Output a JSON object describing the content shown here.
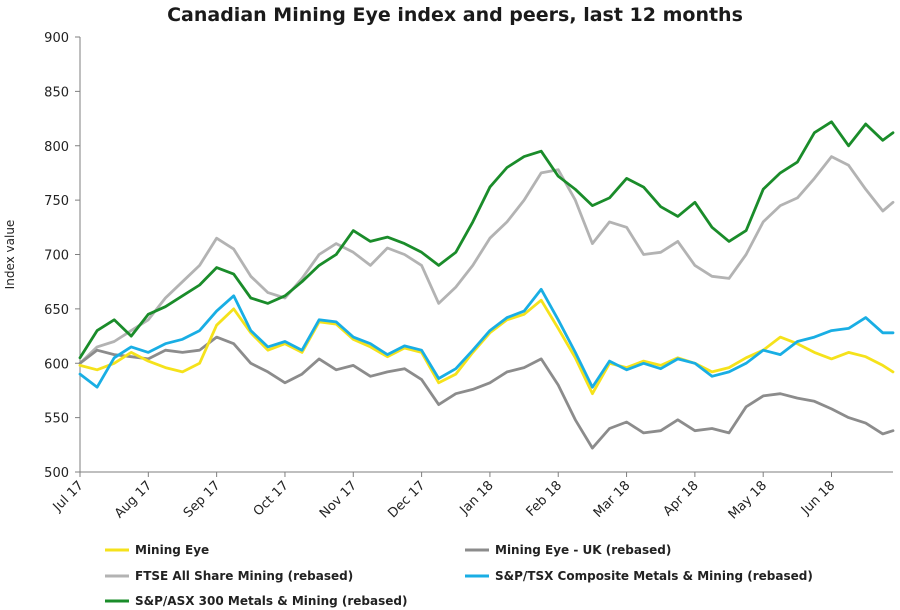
{
  "chart_data": {
    "type": "line",
    "title": "Canadian Mining Eye index and peers, last 12 months",
    "ylabel": "Index value",
    "xlabel": "",
    "ylim": [
      500,
      900
    ],
    "yticks": [
      500,
      550,
      600,
      650,
      700,
      750,
      800,
      850,
      900
    ],
    "x_tick_labels": [
      "Jul 17",
      "Aug 17",
      "Sep 17",
      "Oct 17",
      "Nov 17",
      "Dec 17",
      "Jan 18",
      "Feb 18",
      "Mar 18",
      "Apr 18",
      "May 18",
      "Jun 18"
    ],
    "grid": false,
    "legend_position": "bottom",
    "series": [
      {
        "name": "Mining Eye",
        "color": "#f5e21b",
        "x": [
          0,
          0.25,
          0.5,
          0.75,
          1,
          1.25,
          1.5,
          1.75,
          2,
          2.25,
          2.5,
          2.75,
          3,
          3.25,
          3.5,
          3.75,
          4,
          4.25,
          4.5,
          4.75,
          5,
          5.25,
          5.5,
          5.75,
          6,
          6.25,
          6.5,
          6.75,
          7,
          7.25,
          7.5,
          7.75,
          8,
          8.25,
          8.5,
          8.75,
          9,
          9.25,
          9.5,
          9.75,
          10,
          10.25,
          10.5,
          10.75,
          11,
          11.25,
          11.5,
          11.75,
          11.9
        ],
        "values": [
          598,
          594,
          600,
          610,
          602,
          596,
          592,
          600,
          635,
          650,
          628,
          612,
          618,
          610,
          638,
          636,
          622,
          615,
          606,
          614,
          610,
          582,
          590,
          610,
          628,
          640,
          645,
          658,
          632,
          605,
          572,
          600,
          596,
          602,
          598,
          605,
          600,
          592,
          596,
          605,
          612,
          624,
          618,
          610,
          604,
          610,
          606,
          598,
          592
        ]
      },
      {
        "name": "Mining Eye - UK (rebased)",
        "color": "#8c8c8c",
        "x": [
          0,
          0.25,
          0.5,
          0.75,
          1,
          1.25,
          1.5,
          1.75,
          2,
          2.25,
          2.5,
          2.75,
          3,
          3.25,
          3.5,
          3.75,
          4,
          4.25,
          4.5,
          4.75,
          5,
          5.25,
          5.5,
          5.75,
          6,
          6.25,
          6.5,
          6.75,
          7,
          7.25,
          7.5,
          7.75,
          8,
          8.25,
          8.5,
          8.75,
          9,
          9.25,
          9.5,
          9.75,
          10,
          10.25,
          10.5,
          10.75,
          11,
          11.25,
          11.5,
          11.75,
          11.9
        ],
        "values": [
          600,
          612,
          608,
          606,
          604,
          612,
          610,
          612,
          624,
          618,
          600,
          592,
          582,
          590,
          604,
          594,
          598,
          588,
          592,
          595,
          585,
          562,
          572,
          576,
          582,
          592,
          596,
          604,
          580,
          548,
          522,
          540,
          546,
          536,
          538,
          548,
          538,
          540,
          536,
          560,
          570,
          572,
          568,
          565,
          558,
          550,
          545,
          535,
          538
        ]
      },
      {
        "name": "FTSE All Share Mining (rebased)",
        "color": "#b3b3b3",
        "x": [
          0,
          0.25,
          0.5,
          0.75,
          1,
          1.25,
          1.5,
          1.75,
          2,
          2.25,
          2.5,
          2.75,
          3,
          3.25,
          3.5,
          3.75,
          4,
          4.25,
          4.5,
          4.75,
          5,
          5.25,
          5.5,
          5.75,
          6,
          6.25,
          6.5,
          6.75,
          7,
          7.25,
          7.5,
          7.75,
          8,
          8.25,
          8.5,
          8.75,
          9,
          9.25,
          9.5,
          9.75,
          10,
          10.25,
          10.5,
          10.75,
          11,
          11.25,
          11.5,
          11.75,
          11.9
        ],
        "values": [
          600,
          615,
          620,
          630,
          640,
          660,
          675,
          690,
          715,
          705,
          680,
          665,
          660,
          678,
          700,
          710,
          702,
          690,
          706,
          700,
          690,
          655,
          670,
          690,
          715,
          730,
          750,
          775,
          778,
          750,
          710,
          730,
          725,
          700,
          702,
          712,
          690,
          680,
          678,
          700,
          730,
          745,
          752,
          770,
          790,
          782,
          760,
          740,
          748
        ]
      },
      {
        "name": "S&P/TSX Composite Metals & Mining (rebased)",
        "color": "#19aee4",
        "x": [
          0,
          0.25,
          0.5,
          0.75,
          1,
          1.25,
          1.5,
          1.75,
          2,
          2.25,
          2.5,
          2.75,
          3,
          3.25,
          3.5,
          3.75,
          4,
          4.25,
          4.5,
          4.75,
          5,
          5.25,
          5.5,
          5.75,
          6,
          6.25,
          6.5,
          6.75,
          7,
          7.25,
          7.5,
          7.75,
          8,
          8.25,
          8.5,
          8.75,
          9,
          9.25,
          9.5,
          9.75,
          10,
          10.25,
          10.5,
          10.75,
          11,
          11.25,
          11.5,
          11.75,
          11.9
        ],
        "values": [
          590,
          578,
          605,
          615,
          610,
          618,
          622,
          630,
          648,
          662,
          630,
          615,
          620,
          612,
          640,
          638,
          624,
          618,
          608,
          616,
          612,
          586,
          595,
          612,
          630,
          642,
          648,
          668,
          640,
          610,
          578,
          602,
          594,
          600,
          595,
          604,
          600,
          588,
          592,
          600,
          612,
          608,
          620,
          624,
          630,
          632,
          642,
          628,
          628
        ]
      },
      {
        "name": "S&P/ASX 300 Metals & Mining (rebased)",
        "color": "#1a8c2a",
        "x": [
          0,
          0.25,
          0.5,
          0.75,
          1,
          1.25,
          1.5,
          1.75,
          2,
          2.25,
          2.5,
          2.75,
          3,
          3.25,
          3.5,
          3.75,
          4,
          4.25,
          4.5,
          4.75,
          5,
          5.25,
          5.5,
          5.75,
          6,
          6.25,
          6.5,
          6.75,
          7,
          7.25,
          7.5,
          7.75,
          8,
          8.25,
          8.5,
          8.75,
          9,
          9.25,
          9.5,
          9.75,
          10,
          10.25,
          10.5,
          10.75,
          11,
          11.25,
          11.5,
          11.75,
          11.9
        ],
        "values": [
          605,
          630,
          640,
          625,
          645,
          652,
          662,
          672,
          688,
          682,
          660,
          655,
          662,
          675,
          690,
          700,
          722,
          712,
          716,
          710,
          702,
          690,
          702,
          730,
          762,
          780,
          790,
          795,
          772,
          760,
          745,
          752,
          770,
          762,
          744,
          735,
          748,
          725,
          712,
          722,
          760,
          775,
          785,
          812,
          822,
          800,
          820,
          805,
          812
        ]
      }
    ]
  }
}
